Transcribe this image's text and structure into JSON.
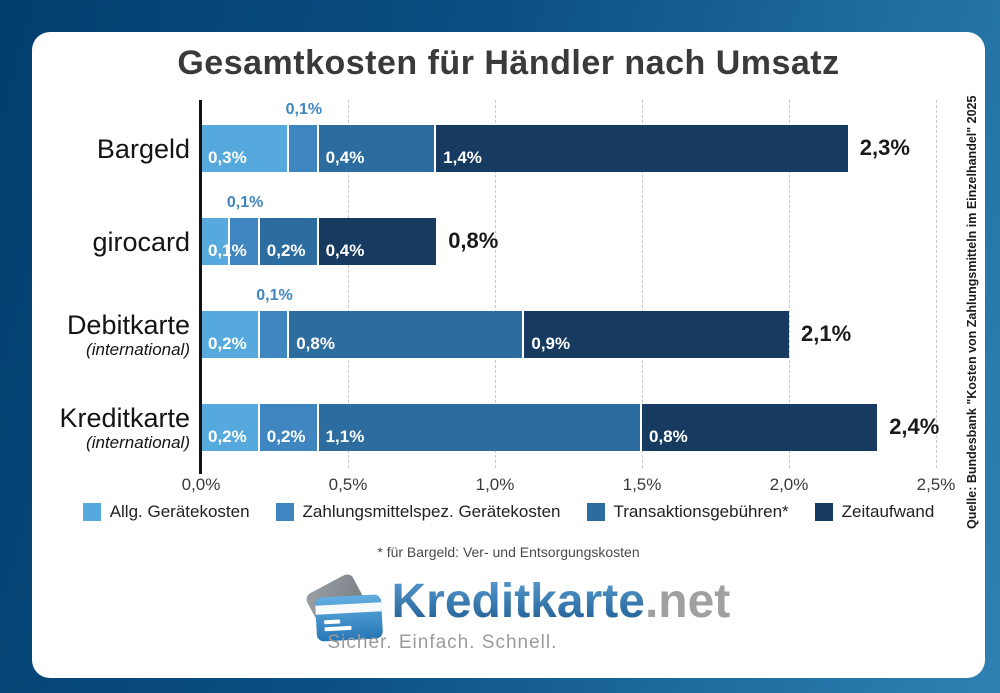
{
  "title": "Gesamtkosten für Händler nach Umsatz",
  "footnote": "* für Bargeld: Ver- und Entsorgungskosten",
  "source": "Quelle: Bundesbank \"Kosten von Zahlungsmitteln im Einzelhandel\" 2025",
  "colors": {
    "series": [
      "#55a9dc",
      "#3f86c0",
      "#2d6c9e",
      "#173b60"
    ],
    "callout": "#3f86c0",
    "frame_gradient": [
      "#023e6d",
      "#2f81b3"
    ]
  },
  "legend": [
    "Allg. Gerätekosten",
    "Zahlungsmittelspez. Gerätekosten",
    "Transaktionsgebühren*",
    "Zeitaufwand"
  ],
  "axis": {
    "ticks": [
      "0,0%",
      "0,5%",
      "1,0%",
      "1,5%",
      "2,0%",
      "2,5%"
    ],
    "min": 0,
    "max": 2.5
  },
  "rows": [
    {
      "label": "Bargeld",
      "sublabel": "",
      "total": "2,3%",
      "segments": [
        {
          "value": 0.3,
          "label": "0,3%",
          "placement": "inside"
        },
        {
          "value": 0.1,
          "label": "0,1%",
          "placement": "above"
        },
        {
          "value": 0.4,
          "label": "0,4%",
          "placement": "inside"
        },
        {
          "value": 1.4,
          "label": "1,4%",
          "placement": "inside"
        }
      ]
    },
    {
      "label": "girocard",
      "sublabel": "",
      "total": "0,8%",
      "segments": [
        {
          "value": 0.1,
          "label": "0,1%",
          "placement": "inside"
        },
        {
          "value": 0.1,
          "label": "0,1%",
          "placement": "above"
        },
        {
          "value": 0.2,
          "label": "0,2%",
          "placement": "inside"
        },
        {
          "value": 0.4,
          "label": "0,4%",
          "placement": "inside"
        }
      ]
    },
    {
      "label": "Debitkarte",
      "sublabel": "(international)",
      "total": "2,1%",
      "segments": [
        {
          "value": 0.2,
          "label": "0,2%",
          "placement": "inside"
        },
        {
          "value": 0.1,
          "label": "0,1%",
          "placement": "above"
        },
        {
          "value": 0.8,
          "label": "0,8%",
          "placement": "inside"
        },
        {
          "value": 0.9,
          "label": "0,9%",
          "placement": "inside"
        }
      ]
    },
    {
      "label": "Kreditkarte",
      "sublabel": "(international)",
      "total": "2,4%",
      "segments": [
        {
          "value": 0.2,
          "label": "0,2%",
          "placement": "inside"
        },
        {
          "value": 0.2,
          "label": "0,2%",
          "placement": "inside"
        },
        {
          "value": 1.1,
          "label": "1,1%",
          "placement": "inside"
        },
        {
          "value": 0.8,
          "label": "0,8%",
          "placement": "inside"
        }
      ]
    }
  ],
  "logo": {
    "brand": "Kreditkarte",
    "suffix": ".net",
    "tagline": "Sicher. Einfach. Schnell."
  },
  "chart_data": {
    "type": "bar",
    "orientation": "horizontal_stacked",
    "title": "Gesamtkosten für Händler nach Umsatz",
    "categories": [
      "Bargeld",
      "girocard",
      "Debitkarte (international)",
      "Kreditkarte (international)"
    ],
    "series": [
      {
        "name": "Allg. Gerätekosten",
        "values": [
          0.3,
          0.1,
          0.2,
          0.2
        ],
        "color": "#55a9dc"
      },
      {
        "name": "Zahlungsmittelspez. Gerätekosten",
        "values": [
          0.1,
          0.1,
          0.1,
          0.2
        ],
        "color": "#3f86c0"
      },
      {
        "name": "Transaktionsgebühren*",
        "values": [
          0.4,
          0.2,
          0.8,
          1.1
        ],
        "color": "#2d6c9e"
      },
      {
        "name": "Zeitaufwand",
        "values": [
          1.4,
          0.4,
          0.9,
          0.8
        ],
        "color": "#173b60"
      }
    ],
    "totals": [
      2.3,
      0.8,
      2.1,
      2.4
    ],
    "unit": "%",
    "xlabel": "",
    "ylabel": "",
    "xlim": [
      0,
      2.5
    ],
    "x_ticks": [
      "0,0%",
      "0,5%",
      "1,0%",
      "1,5%",
      "2,0%",
      "2,5%"
    ],
    "grid": "vertical-dashed",
    "legend_position": "bottom",
    "footnote": "* für Bargeld: Ver- und Entsorgungskosten",
    "source": "Quelle: Bundesbank \"Kosten von Zahlungsmitteln im Einzelhandel\" 2025"
  }
}
